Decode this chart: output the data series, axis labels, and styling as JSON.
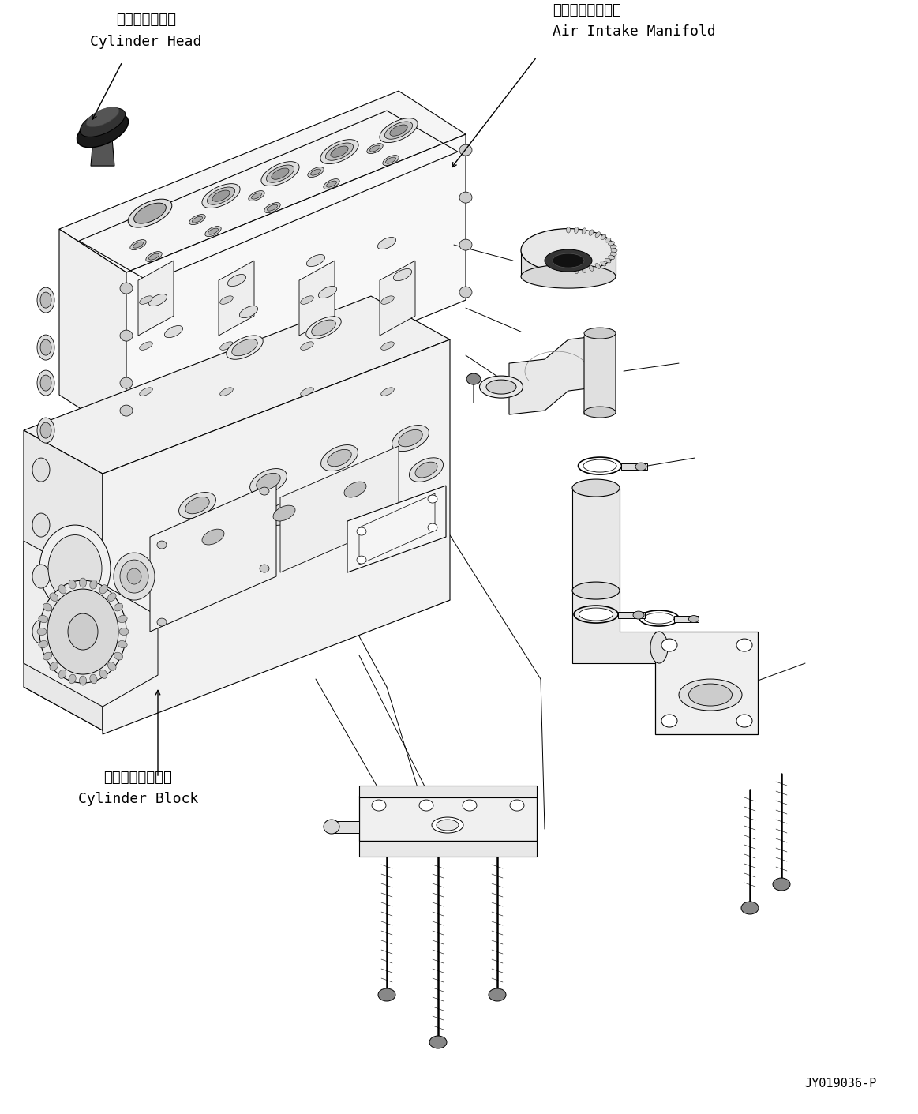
{
  "background_color": "#ffffff",
  "ref_code": "JY019036-P",
  "label_cylinder_head_jp": "シリンダヘッド",
  "label_cylinder_head_en": "Cylinder Head",
  "label_air_intake_jp": "吸気マニホールド",
  "label_air_intake_en": "Air Intake Manifold",
  "label_cylinder_block_jp": "シリンダブロック",
  "label_cylinder_block_en": "Cylinder Block",
  "engine_color": "#ffffff",
  "line_color": "#000000",
  "line_width": 0.8
}
